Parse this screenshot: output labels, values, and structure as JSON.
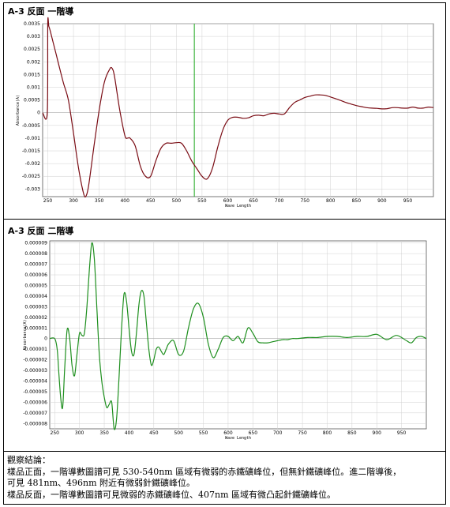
{
  "sections": {
    "first_title": "A-3 反面 一階導",
    "second_title": "A-3 反面 二階導"
  },
  "colors": {
    "first_line": "#7a0c14",
    "second_line": "#1e8f1e",
    "marker_line": "#1ea81e",
    "grid": "#d0d0d0",
    "axis": "#000000"
  },
  "chart_data": [
    {
      "type": "line",
      "xlabel": "Wave Length",
      "ylabel": "Absorbance(A)",
      "xlim": [
        240,
        1000
      ],
      "ylim": [
        -0.0033,
        0.0035
      ],
      "xticks": [
        250,
        300,
        350,
        400,
        450,
        500,
        550,
        600,
        650,
        700,
        750,
        800,
        850,
        900,
        950
      ],
      "yticks": [
        0.0035,
        0.003,
        0.0025,
        0.002,
        0.0015,
        0.001,
        0.0005,
        0,
        -0.0005,
        -0.001,
        -0.0015,
        -0.002,
        -0.0025,
        -0.003
      ],
      "ytick_labels": [
        "0.0035",
        "0.003",
        "0.0025",
        "0.002",
        "0.0015",
        "0.001",
        "0.0005",
        "0",
        "-0.0005",
        "-0.001",
        "-0.0015",
        "-0.002",
        "-0.0025",
        "-0.003"
      ],
      "grid": true,
      "vertical_marker_x": 535,
      "series": [
        {
          "x": [
            240,
            249,
            250,
            252,
            255,
            260,
            270,
            280,
            290,
            300,
            310,
            320,
            325,
            330,
            340,
            350,
            360,
            370,
            375,
            380,
            390,
            400,
            405,
            410,
            420,
            430,
            440,
            450,
            460,
            470,
            480,
            490,
            500,
            510,
            520,
            530,
            540,
            550,
            560,
            570,
            580,
            590,
            600,
            610,
            620,
            630,
            640,
            650,
            660,
            670,
            680,
            690,
            700,
            710,
            720,
            730,
            740,
            750,
            760,
            770,
            780,
            790,
            800,
            810,
            820,
            830,
            840,
            850,
            860,
            870,
            880,
            890,
            900,
            910,
            920,
            930,
            940,
            950,
            960,
            970,
            980,
            990,
            1000
          ],
          "y": [
            0,
            0,
            0.0035,
            0.0034,
            0.0032,
            0.0028,
            0.002,
            0.0012,
            0.0005,
            -0.0008,
            -0.0022,
            -0.0032,
            -0.00325,
            -0.0028,
            -0.0013,
            0.0001,
            0.0012,
            0.0017,
            0.00175,
            0.0014,
            0.0001,
            -0.0009,
            -0.001,
            -0.001,
            -0.0013,
            -0.0021,
            -0.0025,
            -0.0025,
            -0.0019,
            -0.0014,
            -0.0012,
            -0.0012,
            -0.00118,
            -0.0012,
            -0.0015,
            -0.0019,
            -0.0022,
            -0.0025,
            -0.0026,
            -0.0022,
            -0.0014,
            -0.0007,
            -0.0003,
            -0.00018,
            -0.00018,
            -0.00022,
            -0.0002,
            -0.00012,
            -0.0001,
            -0.00012,
            -5e-05,
            -2e-05,
            -5e-05,
            -5e-05,
            0.0002,
            0.0004,
            0.0005,
            0.0006,
            0.00065,
            0.0007,
            0.0007,
            0.00068,
            0.00062,
            0.00055,
            0.00048,
            0.0004,
            0.00034,
            0.00028,
            0.00024,
            0.0002,
            0.00018,
            0.00017,
            0.00015,
            0.00016,
            0.0002,
            0.0002,
            0.00018,
            0.00018,
            0.00022,
            0.00018,
            0.00018,
            0.00022,
            0.0002
          ]
        }
      ]
    },
    {
      "type": "line",
      "xlabel": "Wave Length",
      "ylabel": "Absorbance(A)",
      "xlim": [
        240,
        1000
      ],
      "ylim": [
        -8.5e-06,
        9.2e-06
      ],
      "xticks": [
        250,
        300,
        350,
        400,
        450,
        500,
        550,
        600,
        650,
        700,
        750,
        800,
        850,
        900,
        950
      ],
      "yticks": [
        9e-06,
        8e-06,
        7e-06,
        6e-06,
        5e-06,
        4e-06,
        3e-06,
        2e-06,
        1e-06,
        0,
        -1e-06,
        -2e-06,
        -3e-06,
        -4e-06,
        -5e-06,
        -6e-06,
        -7e-06,
        -8e-06
      ],
      "ytick_labels": [
        "0.000009",
        "0.000008",
        "0.000007",
        "0.000006",
        "0.000005",
        "0.000004",
        "0.000003",
        "0.000002",
        "0.000001",
        "0",
        "-0.000001",
        "-0.000002",
        "-0.000003",
        "-0.000004",
        "-0.000005",
        "-0.000006",
        "-0.000007",
        "-0.000008"
      ],
      "grid": true,
      "series": [
        {
          "x": [
            240,
            250,
            255,
            258,
            262,
            266,
            270,
            275,
            280,
            285,
            290,
            295,
            300,
            305,
            310,
            315,
            320,
            325,
            330,
            335,
            340,
            345,
            350,
            355,
            360,
            365,
            370,
            375,
            380,
            385,
            390,
            395,
            400,
            405,
            410,
            415,
            420,
            425,
            430,
            435,
            440,
            445,
            450,
            455,
            460,
            465,
            470,
            475,
            480,
            490,
            500,
            510,
            520,
            530,
            540,
            550,
            560,
            570,
            580,
            590,
            600,
            610,
            620,
            630,
            640,
            650,
            660,
            670,
            680,
            690,
            700,
            710,
            720,
            730,
            740,
            760,
            780,
            800,
            820,
            840,
            860,
            880,
            900,
            920,
            940,
            960,
            970,
            980,
            990,
            1000
          ],
          "y": [
            0,
            0,
            -1e-06,
            -3e-06,
            -5.5e-06,
            -6.5e-06,
            -3e-06,
            8e-07,
            1e-07,
            -2.5e-06,
            -3.5e-06,
            -1.5e-06,
            5e-07,
            3e-07,
            5e-07,
            3e-06,
            6.5e-06,
            9e-06,
            7.5e-06,
            3e-06,
            -1.5e-06,
            -4e-06,
            -5.5e-06,
            -6.5e-06,
            -6.2e-06,
            -6e-06,
            -8.5e-06,
            -7.5e-06,
            -3.5e-06,
            1e-06,
            4.2e-06,
            3.5e-06,
            1e-06,
            -1.2e-06,
            -1.5e-06,
            5e-07,
            3.2e-06,
            4.5e-06,
            4e-06,
            1.5e-06,
            -1e-06,
            -2.5e-06,
            -2e-06,
            -1e-06,
            -8e-07,
            -1.2e-06,
            -1.5e-06,
            -1e-06,
            -5e-07,
            -2e-07,
            -1.5e-06,
            -1.2e-06,
            1e-06,
            2.8e-06,
            3.3e-06,
            2e-06,
            -5e-07,
            -1.8e-06,
            -1e-06,
            1e-07,
            2e-07,
            -2e-07,
            2e-07,
            -4e-07,
            1e-06,
            5e-07,
            -3e-07,
            -4e-07,
            -4e-07,
            -3e-07,
            -2e-07,
            -1e-07,
            -1e-07,
            0,
            0,
            1e-07,
            1e-07,
            2e-07,
            2e-07,
            1e-07,
            2e-07,
            2e-07,
            4e-07,
            -1e-07,
            3e-07,
            -2e-07,
            -4e-07,
            1e-07,
            2e-07,
            0
          ]
        }
      ]
    }
  ],
  "notes": {
    "heading": "觀察結論：",
    "line1": "樣品正面，一階導數圖譜可見 530-540nm 區域有微弱的赤鐵礦峰位，但無針鐵礦峰位。進二階導後，",
    "line2": "可見 481nm、496nm 附近有微弱針鐵礦峰位。",
    "line3": "樣品反面，一階導數圖譜可見微弱的赤鐵礦峰位、407nm 區域有微凸起針鐵礦峰位。"
  }
}
